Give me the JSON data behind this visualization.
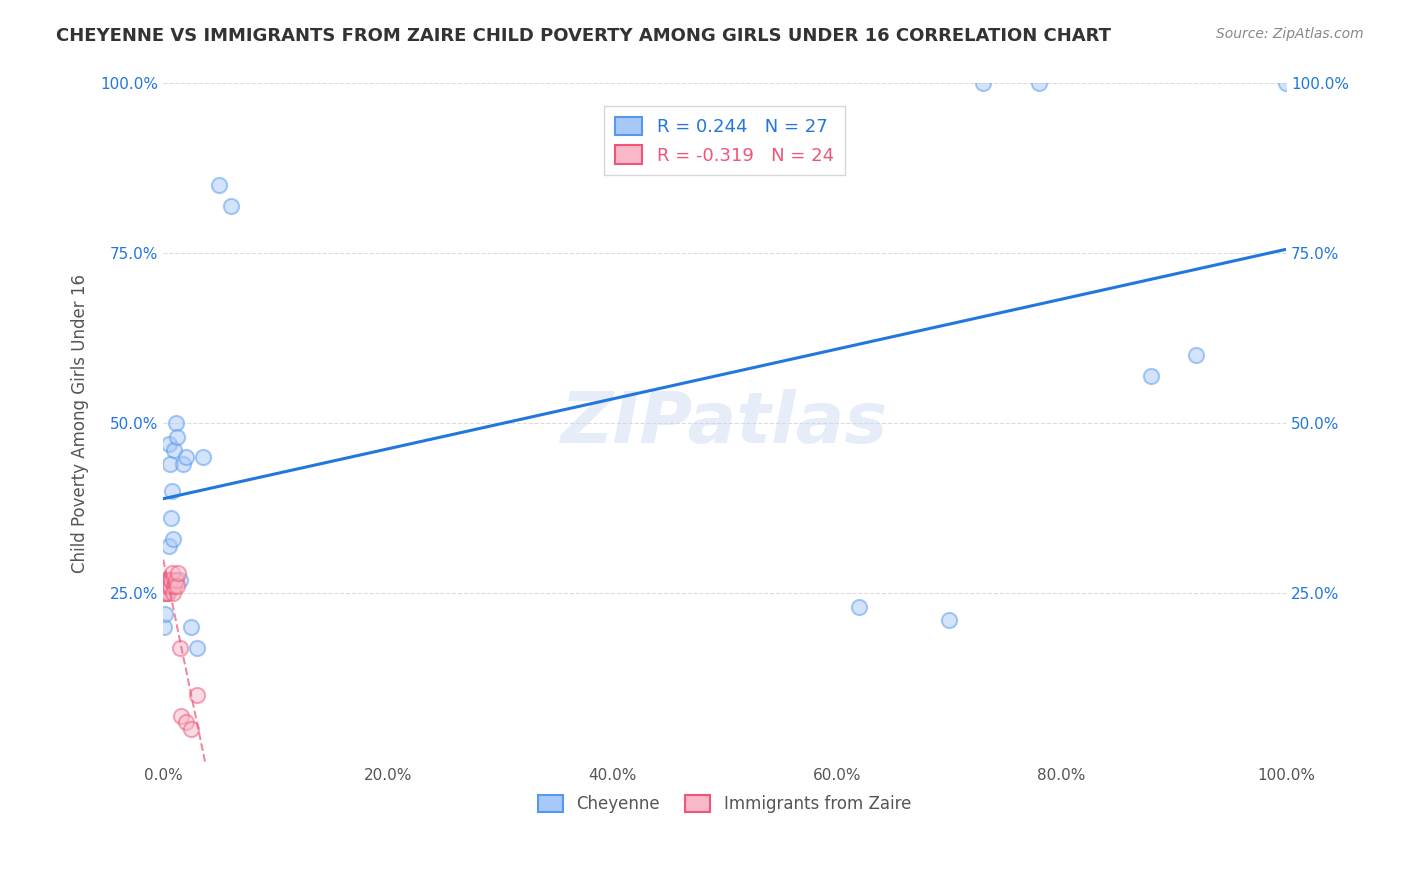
{
  "title": "CHEYENNE VS IMMIGRANTS FROM ZAIRE CHILD POVERTY AMONG GIRLS UNDER 16 CORRELATION CHART",
  "source": "Source: ZipAtlas.com",
  "ylabel": "Child Poverty Among Girls Under 16",
  "xlabel": "",
  "background_color": "#ffffff",
  "watermark": "ZIPatlas",
  "cheyenne_x": [
    0.001,
    0.002,
    0.003,
    0.005,
    0.006,
    0.005,
    0.007,
    0.008,
    0.009,
    0.01,
    0.011,
    0.012,
    0.015,
    0.018,
    0.02,
    0.025,
    0.03,
    0.035,
    0.05,
    0.06,
    0.62,
    0.7,
    0.73,
    0.78,
    0.88,
    0.92,
    1.0
  ],
  "cheyenne_y": [
    0.2,
    0.22,
    0.25,
    0.47,
    0.44,
    0.32,
    0.36,
    0.4,
    0.33,
    0.46,
    0.5,
    0.48,
    0.27,
    0.44,
    0.45,
    0.2,
    0.17,
    0.45,
    0.85,
    0.82,
    0.23,
    0.21,
    1.0,
    1.0,
    0.57,
    0.6,
    1.0
  ],
  "zaire_x": [
    0.001,
    0.001,
    0.002,
    0.002,
    0.003,
    0.003,
    0.004,
    0.004,
    0.005,
    0.005,
    0.006,
    0.006,
    0.007,
    0.008,
    0.009,
    0.01,
    0.011,
    0.012,
    0.013,
    0.015,
    0.016,
    0.02,
    0.025,
    0.03
  ],
  "zaire_y": [
    0.25,
    0.27,
    0.25,
    0.26,
    0.26,
    0.27,
    0.26,
    0.25,
    0.27,
    0.26,
    0.27,
    0.26,
    0.27,
    0.28,
    0.25,
    0.26,
    0.27,
    0.26,
    0.28,
    0.17,
    0.07,
    0.06,
    0.05,
    0.1
  ],
  "cheyenne_color": "#a8c8f8",
  "cheyenne_edge_color": "#5599ee",
  "zaire_color": "#f8b8c8",
  "zaire_edge_color": "#ee5577",
  "cheyenne_R": 0.244,
  "cheyenne_N": 27,
  "zaire_R": -0.319,
  "zaire_N": 24,
  "blue_line_color": "#2277dd",
  "pink_line_color": "#ee5577",
  "xlim": [
    0,
    1.0
  ],
  "ylim": [
    0,
    1.0
  ],
  "xtick_labels": [
    "0.0%",
    "20.0%",
    "40.0%",
    "60.0%",
    "80.0%",
    "100.0%"
  ],
  "xtick_vals": [
    0.0,
    0.2,
    0.4,
    0.6,
    0.8,
    1.0
  ],
  "ytick_labels_left": [
    "",
    "25.0%",
    "50.0%",
    "75.0%",
    "100.0%"
  ],
  "ytick_vals": [
    0.0,
    0.25,
    0.5,
    0.75,
    1.0
  ],
  "ytick_labels_right": [
    "",
    "25.0%",
    "50.0%",
    "75.0%",
    "100.0%"
  ],
  "grid_color": "#cccccc",
  "grid_linestyle": "--",
  "grid_alpha": 0.7,
  "marker_size": 120,
  "marker_alpha": 0.5,
  "marker_linewidth": 1.5
}
